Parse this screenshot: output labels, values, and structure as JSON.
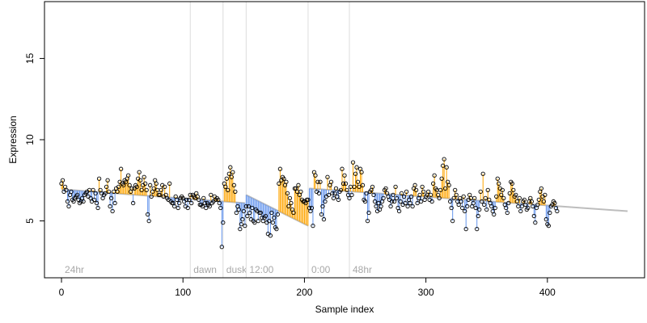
{
  "chart_data": {
    "type": "scatter",
    "title": "",
    "xlabel": "Sample index",
    "ylabel": "Expression",
    "xlim": [
      -14,
      480
    ],
    "ylim": [
      1.5,
      18.5
    ],
    "x_ticks": [
      0,
      100,
      200,
      300,
      400
    ],
    "y_ticks": [
      5,
      10,
      15
    ],
    "baseline_segments": [
      {
        "x_start": 0,
        "x_end": 151,
        "y_start": 6.95,
        "y_end": 6.1
      },
      {
        "x_start": 152,
        "x_end": 203,
        "y_start": 6.6,
        "y_end": 4.7
      },
      {
        "x_start": 204,
        "x_end": 466,
        "y_start": 7.0,
        "y_end": 5.6
      }
    ],
    "above_color": "#ffa500",
    "below_color": "#6495ed",
    "baseline_color": "#bdbdbd",
    "annotations": [
      {
        "label": "24hr",
        "x": 0
      },
      {
        "label": "dawn",
        "x": 106
      },
      {
        "label": "dusk",
        "x": 133
      },
      {
        "label": "12:00",
        "x": 152
      },
      {
        "label": "0:00",
        "x": 203
      },
      {
        "label": "48hr",
        "x": 237
      }
    ],
    "series": [
      {
        "y": [
          7.3,
          7.5,
          6.8,
          7.1,
          6.9,
          6.2,
          5.9,
          6.6,
          6.8,
          6.3,
          6.2,
          6.4,
          6.5,
          6.6,
          6.3,
          6.1,
          6.2,
          6.4,
          6.2,
          6.6,
          6.7,
          6.8,
          6.5,
          6.9,
          6.4,
          6.2,
          6.9,
          6.3,
          6.7,
          6.1,
          5.8,
          7.6,
          6.9,
          6.7,
          6.4,
          6.6,
          6.7,
          7.1,
          7.5,
          6.8,
          5.9,
          6.4,
          5.6,
          6.8,
          6.1,
          7.0,
          6.8,
          7.1,
          7.4,
          8.2,
          7.3,
          7.2,
          7.5,
          7.4,
          7.6,
          7.8,
          7.2,
          6.8,
          7.0,
          6.1,
          7.0,
          7.2,
          7.1,
          7.6,
          8.0,
          7.5,
          6.9,
          7.2,
          7.7,
          7.3,
          6.9,
          5.4,
          5.0,
          7.2,
          6.5,
          6.8,
          7.0,
          7.5,
          7.3,
          6.9,
          6.6,
          6.6,
          6.9,
          7.2,
          6.5,
          7.1,
          6.6,
          6.4,
          6.3,
          7.3,
          6.2,
          6.1,
          6.1,
          5.9,
          6.5,
          6.3,
          5.8,
          6.1,
          6.4,
          6.5,
          6.4,
          6.2,
          5.9,
          6.3,
          5.8,
          6.3,
          6.6,
          6.1,
          6.6,
          6.5,
          6.4,
          6.7,
          6.5,
          6.3,
          6.0,
          6.0,
          5.9,
          6.4,
          6.1,
          5.8,
          6.1,
          6.0,
          5.9,
          6.6,
          6.1,
          6.2,
          6.5,
          6.3,
          6.4,
          6.3,
          6.1,
          5.8,
          3.4,
          4.9,
          7.3,
          7.1,
          7.6,
          6.9,
          7.9,
          8.3,
          7.7,
          8.0,
          7.2,
          6.8,
          5.5,
          5.9,
          5.7,
          4.5,
          4.8,
          5.1,
          5.6,
          4.7,
          5.9,
          5.3,
          5.9,
          5.5,
          5.1,
          5.8,
          5.0,
          4.9,
          5.7,
          5.6,
          5.0,
          5.5,
          5.5,
          5.2,
          5.0,
          5.2,
          5.3,
          4.9,
          4.2,
          5.0,
          4.1,
          5.5,
          4.9,
          5.2,
          4.6,
          4.5,
          5.4,
          7.3,
          8.2,
          7.5,
          7.7,
          7.6,
          7.2,
          7.4,
          6.7,
          5.9,
          6.4,
          6.1,
          5.7,
          5.5,
          7.0,
          7.0,
          6.8,
          7.2,
          6.6,
          6.8,
          6.3,
          6.2,
          6.2,
          6.1,
          6.3,
          6.3,
          5.8,
          5.6,
          5.8,
          4.7,
          8.0,
          7.8,
          6.8,
          7.4,
          6.7,
          7.4,
          5.4,
          5.9,
          5.1,
          6.2,
          6.5,
          7.7,
          6.6,
          7.2,
          7.4,
          6.7,
          6.4,
          6.7,
          7.0,
          6.5,
          6.3,
          6.8,
          6.9,
          8.2,
          7.3,
          7.8,
          7.3,
          6.9,
          6.6,
          6.4,
          7.1,
          6.6,
          8.6,
          7.1,
          7.9,
          8.3,
          7.4,
          7.1,
          8.2,
          8.0,
          7.2,
          6.3,
          6.2,
          6.7,
          5.0,
          5.5,
          6.8,
          6.9,
          7.1,
          6.6,
          6.2,
          5.9,
          5.6,
          6.1,
          5.7,
          5.9,
          6.2,
          6.4,
          6.9,
          7.0,
          6.7,
          6.5,
          6.3,
          5.9,
          6.2,
          6.6,
          6.2,
          7.1,
          6.4,
          5.8,
          5.6,
          6.2,
          6.7,
          6.0,
          6.5,
          6.1,
          6.8,
          5.9,
          6.3,
          6.1,
          6.5,
          5.9,
          7.0,
          7.2,
          6.9,
          6.1,
          6.4,
          6.6,
          6.2,
          7.1,
          6.8,
          6.3,
          6.5,
          6.6,
          6.8,
          6.3,
          6.6,
          6.2,
          7.3,
          7.8,
          7.0,
          6.9,
          6.6,
          6.4,
          6.9,
          7.6,
          8.4,
          8.8,
          7.0,
          8.3,
          7.4,
          7.2,
          6.2,
          5.8,
          5.0,
          6.4,
          6.9,
          6.6,
          6.2,
          6.0,
          6.4,
          6.2,
          5.8,
          6.5,
          5.6,
          4.5,
          5.9,
          6.3,
          6.6,
          6.4,
          5.9,
          6.1,
          6.4,
          5.8,
          4.5,
          5.3,
          5.7,
          6.8,
          6.2,
          7.9,
          6.0,
          6.4,
          5.7,
          6.9,
          6.3,
          6.1,
          5.9,
          5.6,
          5.4,
          5.8,
          6.5,
          7.6,
          7.3,
          7.0,
          6.6,
          6.9,
          6.4,
          6.0,
          5.8,
          5.5,
          6.1,
          6.7,
          7.4,
          7.3,
          6.9,
          6.5,
          6.6,
          6.2,
          5.9,
          6.4,
          5.6,
          5.9,
          6.2,
          6.3,
          6.0,
          5.7,
          5.8,
          6.2,
          6.4,
          6.2,
          5.9,
          5.3,
          4.9,
          5.8,
          6.0,
          6.3,
          6.8,
          7.0,
          6.5,
          6.2,
          6.6,
          5.1,
          4.8,
          4.7,
          5.5,
          5.9,
          6.0,
          6.2,
          6.1,
          5.8,
          5.6
        ]
      }
    ]
  }
}
